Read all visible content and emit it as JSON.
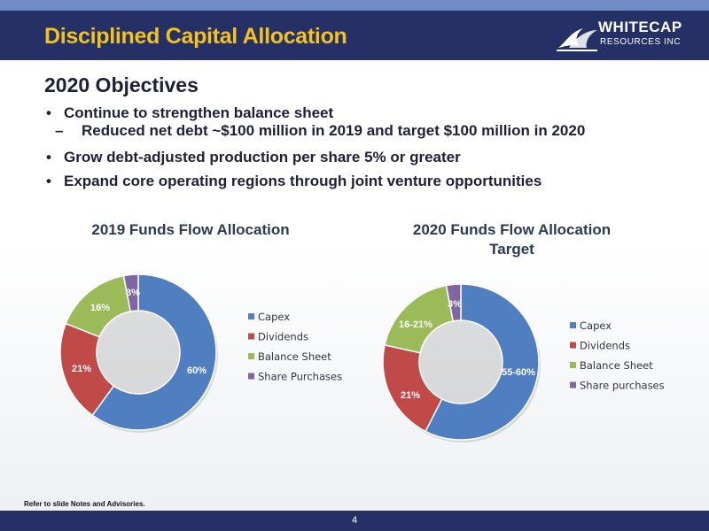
{
  "header": {
    "title": "Disciplined Capital Allocation",
    "logo_line1": "WHITECAP",
    "logo_line2": "RESOURCES INC"
  },
  "objectives": {
    "title": "2020 Objectives",
    "bullets": [
      "Continue to strengthen balance sheet",
      "Grow debt-adjusted production per share 5% or greater",
      "Expand core operating regions through joint venture opportunities"
    ],
    "sub_bullet": "Reduced net debt ~$100 million in 2019 and target $100 million in 2020",
    "bullet_char": "•",
    "dash_char": "–"
  },
  "chart_data": [
    {
      "type": "pie",
      "donut": true,
      "title": "2019 Funds Flow Allocation",
      "categories": [
        "Capex",
        "Dividends",
        "Balance Sheet",
        "Share Purchases"
      ],
      "values": [
        60,
        21,
        16,
        3
      ],
      "labels": [
        "60%",
        "21%",
        "16%",
        "3%"
      ],
      "colors": [
        "#4f7fc0",
        "#bf4a47",
        "#9bbb59",
        "#8065a2"
      ],
      "legend": "right"
    },
    {
      "type": "pie",
      "donut": true,
      "title": "2020 Funds Flow Allocation Target",
      "title_lines": [
        "2020 Funds Flow Allocation",
        "Target"
      ],
      "categories": [
        "Capex",
        "Dividends",
        "Balance Sheet",
        "Share purchases"
      ],
      "values": [
        57.5,
        21,
        18.5,
        3
      ],
      "labels": [
        "55-60%",
        "21%",
        "16-21%",
        "3%"
      ],
      "colors": [
        "#4f7fc0",
        "#bf4a47",
        "#9bbb59",
        "#8065a2"
      ],
      "legend": "right"
    }
  ],
  "footer": {
    "note": "Refer to slide Notes and Advisories.",
    "page": "4"
  }
}
